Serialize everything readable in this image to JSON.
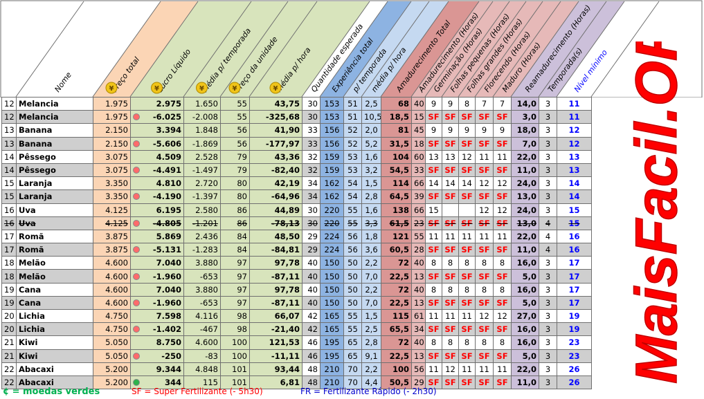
{
  "header": {
    "columns": [
      "Nome",
      "Preço total",
      "Lucro Líquido",
      "Média p/ temporada",
      "Preço da unidade",
      "média p/ hora",
      "Quantidade esperada",
      "Experiência total",
      "p/ temporada",
      "média p/ hora",
      "Amadurecimento Total",
      "Amadurecimento (Horas)",
      "Germinação (Horas)",
      "Folhas pequenas (Horas)",
      "Folhas grandes (Horas)",
      "Florecendo (Horas)",
      "Maduro (Horas)",
      "Reamadurecimento (Horas)",
      "Temporada(s)",
      "Nível mínimo"
    ],
    "coin_symbol": "¥"
  },
  "rows": [
    [
      "12",
      "Melancia",
      "1.975",
      "2.975",
      "1.650",
      "55",
      "43,75",
      "30",
      "153",
      "51",
      "2,5",
      "68",
      "40",
      "9",
      "9",
      "8",
      "7",
      "7",
      "14,0",
      "3",
      "11"
    ],
    [
      "12",
      "Melancia",
      "1.975",
      "-6.025",
      "-2.008",
      "55",
      "-325,68",
      "30",
      "153",
      "51",
      "10,5",
      "18,5",
      "15",
      "SF",
      "SF",
      "SF",
      "SF",
      "SF",
      "3,0",
      "3",
      "11"
    ],
    [
      "13",
      "Banana",
      "2.150",
      "3.394",
      "1.848",
      "56",
      "41,90",
      "33",
      "156",
      "52",
      "2,0",
      "81",
      "45",
      "9",
      "9",
      "9",
      "9",
      "9",
      "18,0",
      "3",
      "12"
    ],
    [
      "13",
      "Banana",
      "2.150",
      "-5.606",
      "-1.869",
      "56",
      "-177,97",
      "33",
      "156",
      "52",
      "5,2",
      "31,5",
      "18",
      "SF",
      "SF",
      "SF",
      "SF",
      "SF",
      "7,0",
      "3",
      "12"
    ],
    [
      "14",
      "Pêssego",
      "3.075",
      "4.509",
      "2.528",
      "79",
      "43,36",
      "32",
      "159",
      "53",
      "1,6",
      "104",
      "60",
      "13",
      "13",
      "12",
      "11",
      "11",
      "22,0",
      "3",
      "13"
    ],
    [
      "14",
      "Pêssego",
      "3.075",
      "-4.491",
      "-1.497",
      "79",
      "-82,40",
      "32",
      "159",
      "53",
      "3,2",
      "54,5",
      "33",
      "SF",
      "SF",
      "SF",
      "SF",
      "SF",
      "11,0",
      "3",
      "13"
    ],
    [
      "15",
      "Laranja",
      "3.350",
      "4.810",
      "2.720",
      "80",
      "42,19",
      "34",
      "162",
      "54",
      "1,5",
      "114",
      "66",
      "14",
      "14",
      "14",
      "12",
      "12",
      "24,0",
      "3",
      "14"
    ],
    [
      "15",
      "Laranja",
      "3.350",
      "-4.190",
      "-1.397",
      "80",
      "-64,96",
      "34",
      "162",
      "54",
      "2,8",
      "64,5",
      "39",
      "SF",
      "SF",
      "SF",
      "SF",
      "SF",
      "13,0",
      "3",
      "14"
    ],
    [
      "16",
      "Uva",
      "4.125",
      "6.195",
      "2.580",
      "86",
      "44,89",
      "30",
      "220",
      "55",
      "1,6",
      "138",
      "66",
      "15",
      "",
      "",
      "12",
      "12",
      "24,0",
      "3",
      "15"
    ],
    [
      "16",
      "Uva",
      "4.125",
      "-4.805",
      "-1.201",
      "86",
      "-78,13",
      "30",
      "220",
      "55",
      "3,3",
      "61,5",
      "23",
      "SF",
      "SF",
      "SF",
      "SF",
      "SF",
      "13,0",
      "4",
      "15"
    ],
    [
      "17",
      "Romã",
      "3.875",
      "5.869",
      "2.436",
      "84",
      "48,50",
      "29",
      "224",
      "56",
      "1,8",
      "121",
      "55",
      "11",
      "11",
      "11",
      "11",
      "11",
      "22,0",
      "4",
      "16"
    ],
    [
      "17",
      "Romã",
      "3.875",
      "-5.131",
      "-1.283",
      "84",
      "-84,81",
      "29",
      "224",
      "56",
      "3,6",
      "60,5",
      "28",
      "SF",
      "SF",
      "SF",
      "SF",
      "SF",
      "11,0",
      "4",
      "16"
    ],
    [
      "18",
      "Melão",
      "4.600",
      "7.040",
      "3.880",
      "97",
      "97,78",
      "40",
      "150",
      "50",
      "2,2",
      "72",
      "40",
      "8",
      "8",
      "8",
      "8",
      "8",
      "16,0",
      "3",
      "17"
    ],
    [
      "18",
      "Melão",
      "4.600",
      "-1.960",
      "-653",
      "97",
      "-87,11",
      "40",
      "150",
      "50",
      "7,0",
      "22,5",
      "13",
      "SF",
      "SF",
      "SF",
      "SF",
      "SF",
      "5,0",
      "3",
      "17"
    ],
    [
      "19",
      "Cana",
      "4.600",
      "7.040",
      "3.880",
      "97",
      "97,78",
      "40",
      "150",
      "50",
      "2,2",
      "72",
      "40",
      "8",
      "8",
      "8",
      "8",
      "8",
      "16,0",
      "3",
      "17"
    ],
    [
      "19",
      "Cana",
      "4.600",
      "-1.960",
      "-653",
      "97",
      "-87,11",
      "40",
      "150",
      "50",
      "7,0",
      "22,5",
      "13",
      "SF",
      "SF",
      "SF",
      "SF",
      "SF",
      "5,0",
      "3",
      "17"
    ],
    [
      "20",
      "Lichia",
      "4.750",
      "7.598",
      "4.116",
      "98",
      "66,07",
      "42",
      "165",
      "55",
      "1,5",
      "115",
      "61",
      "11",
      "11",
      "11",
      "12",
      "12",
      "27,0",
      "3",
      "19"
    ],
    [
      "20",
      "Lichia",
      "4.750",
      "-1.402",
      "-467",
      "98",
      "-21,40",
      "42",
      "165",
      "55",
      "2,5",
      "65,5",
      "34",
      "SF",
      "SF",
      "SF",
      "SF",
      "SF",
      "16,0",
      "3",
      "19"
    ],
    [
      "21",
      "Kiwi",
      "5.050",
      "8.750",
      "4.600",
      "100",
      "121,53",
      "46",
      "195",
      "65",
      "2,8",
      "72",
      "40",
      "8",
      "8",
      "8",
      "8",
      "8",
      "16,0",
      "3",
      "23"
    ],
    [
      "21",
      "Kiwi",
      "5.050",
      "-250",
      "-83",
      "100",
      "-11,11",
      "46",
      "195",
      "65",
      "9,1",
      "22,5",
      "13",
      "SF",
      "SF",
      "SF",
      "SF",
      "SF",
      "5,0",
      "3",
      "23"
    ],
    [
      "22",
      "Abacaxi",
      "5.200",
      "9.344",
      "4.848",
      "101",
      "93,44",
      "48",
      "210",
      "70",
      "2,2",
      "100",
      "56",
      "11",
      "12",
      "11",
      "11",
      "11",
      "22,0",
      "3",
      "26"
    ],
    [
      "22",
      "Abacaxi",
      "5.200",
      "344",
      "115",
      "101",
      "6,81",
      "48",
      "210",
      "70",
      "4,4",
      "50,5",
      "29",
      "SF",
      "SF",
      "SF",
      "SF",
      "SF",
      "11,0",
      "3",
      "26"
    ]
  ],
  "footer": {
    "coins": "¢ = moedas verdes",
    "sf": "SF = Super Fertilizante (- 5h30)",
    "fr": "FR = Fertilizante Rápido (- 2h30)"
  },
  "logo": "MaisFacil.ORG",
  "colors": {
    "price": "#fbd5b5",
    "profit": "#d8e4bc",
    "xp": "#c5d9f1",
    "xp_dark": "#8db3e2",
    "ripen": "#e6b9b8",
    "ripen_dark": "#da9694",
    "maduro": "#ccc0da",
    "level": "#0000ff",
    "sf": "#ff0000",
    "coin": "#f0c419",
    "logo": "#ff0000",
    "footer_green": "#00b050",
    "footer_sf": "#ff0000",
    "footer_fr": "#0000cc"
  }
}
